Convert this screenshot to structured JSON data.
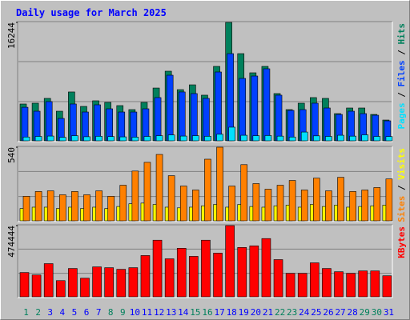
{
  "title": "Daily usage for March 2025",
  "chart_data": [
    {
      "type": "bar",
      "ylim": [
        0,
        16244
      ],
      "yticks": [
        16244
      ],
      "grid": true,
      "series": [
        {
          "name": "Hits",
          "color": "#00805c",
          "values": [
            5050,
            5160,
            5820,
            4060,
            6700,
            4720,
            5490,
            5270,
            4830,
            4280,
            5270,
            7240,
            9550,
            7020,
            7680,
            6260,
            10210,
            16244,
            11960,
            9330,
            10210,
            6480,
            4280,
            5160,
            5930,
            5820,
            3730,
            4500,
            4500,
            3620,
            2850
          ]
        },
        {
          "name": "Files",
          "color": "#0040ff",
          "values": [
            4600,
            4060,
            5380,
            3070,
            5050,
            3950,
            4940,
            4390,
            3950,
            3950,
            4390,
            5930,
            9000,
            6700,
            6480,
            5820,
            9440,
            11960,
            8560,
            8890,
            9880,
            6260,
            4170,
            4280,
            5160,
            4500,
            3620,
            4060,
            3730,
            3510,
            2740
          ]
        },
        {
          "name": "Pages",
          "color": "#00e0ff",
          "values": [
            520,
            600,
            650,
            480,
            700,
            560,
            620,
            580,
            540,
            500,
            600,
            700,
            800,
            650,
            700,
            620,
            900,
            1870,
            760,
            700,
            720,
            640,
            520,
            1200,
            680,
            600,
            760,
            640,
            820,
            600,
            580
          ]
        }
      ]
    },
    {
      "type": "bar",
      "ylim": [
        0,
        540
      ],
      "yticks": [
        540
      ],
      "grid": true,
      "series": [
        {
          "name": "Visits",
          "color": "#ffff00",
          "values": [
            90,
            100,
            100,
            90,
            100,
            90,
            100,
            90,
            105,
            125,
            130,
            120,
            100,
            95,
            100,
            110,
            120,
            100,
            120,
            105,
            100,
            110,
            115,
            100,
            120,
            105,
            115,
            100,
            105,
            110,
            115
          ]
        },
        {
          "name": "Sites",
          "color": "#ff8000",
          "values": [
            180,
            215,
            220,
            191,
            215,
            191,
            220,
            180,
            261,
            365,
            429,
            487,
            331,
            255,
            226,
            452,
            540,
            255,
            412,
            273,
            232,
            261,
            296,
            226,
            313,
            220,
            319,
            215,
            226,
            244,
            307
          ]
        }
      ]
    },
    {
      "type": "bar",
      "ylim": [
        0,
        474444
      ],
      "yticks": [
        474444
      ],
      "grid": true,
      "series": [
        {
          "name": "KBytes",
          "color": "#ff0000",
          "values": [
            161700,
            145500,
            221000,
            107800,
            188700,
            124000,
            199400,
            194000,
            183300,
            194000,
            274900,
            377300,
            253300,
            323400,
            269500,
            377300,
            291100,
            474444,
            328800,
            339600,
            388100,
            247900,
            156300,
            156300,
            226400,
            188700,
            167100,
            156300,
            172500,
            172500,
            140100
          ]
        }
      ],
      "categories": [
        "1",
        "2",
        "3",
        "4",
        "5",
        "6",
        "7",
        "8",
        "9",
        "10",
        "11",
        "12",
        "13",
        "14",
        "15",
        "16",
        "17",
        "18",
        "19",
        "20",
        "21",
        "22",
        "23",
        "24",
        "25",
        "26",
        "27",
        "28",
        "29",
        "30",
        "31"
      ],
      "category_colors": [
        "#00805c",
        "#00805c",
        "#0000ff",
        "#0000ff",
        "#0000ff",
        "#0000ff",
        "#0000ff",
        "#00805c",
        "#00805c",
        "#0000ff",
        "#0000ff",
        "#0000ff",
        "#0000ff",
        "#0000ff",
        "#00805c",
        "#00805c",
        "#0000ff",
        "#0000ff",
        "#0000ff",
        "#0000ff",
        "#0000ff",
        "#00805c",
        "#00805c",
        "#0000ff",
        "#0000ff",
        "#0000ff",
        "#0000ff",
        "#0000ff",
        "#00805c",
        "#00805c",
        "#0000ff"
      ]
    }
  ]
}
